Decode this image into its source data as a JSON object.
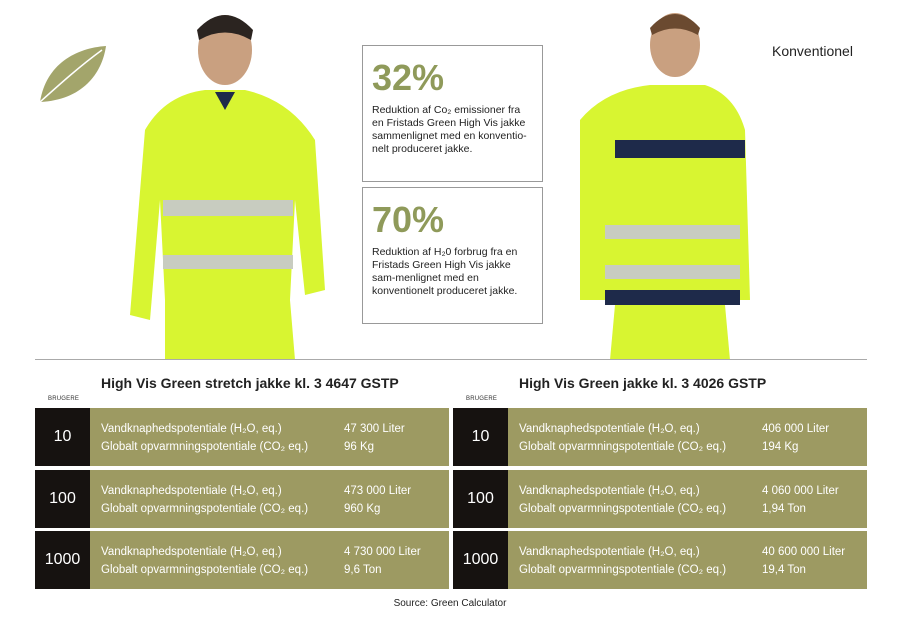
{
  "label_conventional": "Konventionel",
  "colors": {
    "accent": "#8f9a5a",
    "table_bg": "#9d9a62",
    "number_bg": "#161210",
    "hivis": "#d8f531",
    "navy": "#1e2a4a"
  },
  "icons": {
    "leaf": "leaf-icon"
  },
  "stats": [
    {
      "percent": "32%",
      "text": "Reduktion af Co₂ emissioner fra en Fristads Green High Vis jakke sammenlignet med en konventio-nelt produceret jakke."
    },
    {
      "percent": "70%",
      "text": "Reduktion af H₂0 forbrug fra en Fristads Green High Vis jakke sam-menlignet med en konventionelt produceret jakke."
    }
  ],
  "tables": [
    {
      "title": "High Vis Green stretch jakke kl. 3 4647 GSTP",
      "users_label": "BRUGERE",
      "rows": [
        {
          "users": "10",
          "water_label": "Vandknaphedspotentiale (H₂O, eq.)",
          "water": "47 300 Liter",
          "co2_label": "Globalt opvarmningspotentiale (CO₂ eq.)",
          "co2": "96 Kg"
        },
        {
          "users": "100",
          "water_label": "Vandknaphedspotentiale (H₂O, eq.)",
          "water": "473 000 Liter",
          "co2_label": "Globalt opvarmningspotentiale (CO₂ eq.)",
          "co2": "960 Kg"
        },
        {
          "users": "1000",
          "water_label": "Vandknaphedspotentiale (H₂O, eq.)",
          "water": "4 730 000 Liter",
          "co2_label": "Globalt opvarmningspotentiale (CO₂ eq.)",
          "co2": "9,6 Ton"
        }
      ]
    },
    {
      "title": "High Vis Green jakke kl. 3 4026 GSTP",
      "users_label": "BRUGERE",
      "rows": [
        {
          "users": "10",
          "water_label": "Vandknaphedspotentiale (H₂O, eq.)",
          "water": "406 000 Liter",
          "co2_label": "Globalt opvarmningspotentiale (CO₂ eq.)",
          "co2": "194 Kg"
        },
        {
          "users": "100",
          "water_label": "Vandknaphedspotentiale (H₂O, eq.)",
          "water": "4 060 000 Liter",
          "co2_label": "Globalt opvarmningspotentiale (CO₂ eq.)",
          "co2": "1,94 Ton"
        },
        {
          "users": "1000",
          "water_label": "Vandknaphedspotentiale (H₂O, eq.)",
          "water": "40 600 000 Liter",
          "co2_label": "Globalt opvarmningspotentiale (CO₂ eq.)",
          "co2": "19,4 Ton"
        }
      ]
    }
  ],
  "source": "Source: Green Calculator"
}
